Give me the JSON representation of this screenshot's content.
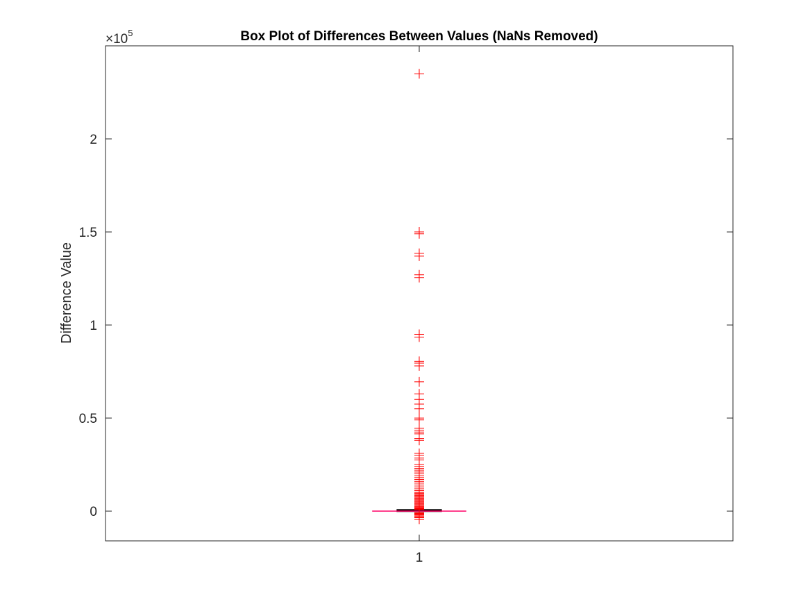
{
  "chart_data": {
    "type": "box",
    "title": "Box Plot of Differences Between Values (NaNs Removed)",
    "ylabel": "Difference Value",
    "xlabel": "",
    "y_scale_exponent_label": "×10",
    "y_scale_exponent_power": "5",
    "y_scale_factor": 100000,
    "ylim": [
      -16000,
      250000
    ],
    "xlim": [
      0.5,
      1.5
    ],
    "y_ticks": [
      0,
      50000,
      100000,
      150000,
      200000
    ],
    "y_tick_labels": [
      "0",
      "0.5",
      "1",
      "1.5",
      "2"
    ],
    "x_ticks": [
      1
    ],
    "x_tick_labels": [
      "1"
    ],
    "grid": false,
    "box": {
      "position": 1,
      "q1": -300,
      "median": 0,
      "q3": 300,
      "whisker_low": -700,
      "whisker_high": 700,
      "box_halfwidth": 0.035,
      "median_halfwidth": 0.075
    },
    "outliers": [
      235000,
      150000,
      149000,
      138500,
      137000,
      127000,
      125500,
      95000,
      93500,
      80500,
      79500,
      78000,
      69500,
      63000,
      60000,
      57500,
      55000,
      50000,
      49000,
      44500,
      43500,
      42500,
      41500,
      39000,
      38000,
      31000,
      30000,
      28500,
      27500,
      25000,
      24000,
      23000,
      22000,
      21000,
      20000,
      19000,
      18000,
      17000,
      16000,
      15000,
      14000,
      13000,
      12000,
      11000,
      10000,
      9500,
      9000,
      8500,
      8000,
      7500,
      7000,
      6500,
      6000,
      5500,
      5000,
      4500,
      4000,
      3500,
      3000,
      2500,
      2000,
      1800,
      1600,
      1400,
      1200,
      1000,
      900,
      800,
      -900,
      -1100,
      -1300,
      -1600,
      -2000,
      -2500,
      -3000,
      -3500,
      -4500
    ],
    "colors": {
      "outlier": "#ff0000",
      "median": "#ff0066",
      "box": "#000000",
      "axes": "#262626"
    }
  }
}
